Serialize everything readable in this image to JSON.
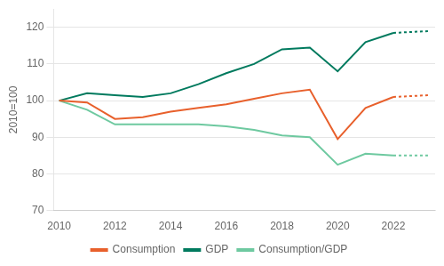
{
  "chart_data": {
    "type": "line",
    "ylabel": "2010=100",
    "series": [
      {
        "name": "Consumption",
        "color": "#E8602C",
        "line_style": "solid",
        "x": [
          2010,
          2011,
          2012,
          2013,
          2014,
          2015,
          2016,
          2017,
          2018,
          2019,
          2020,
          2021,
          2022
        ],
        "values": [
          100,
          99.5,
          95,
          95.5,
          97,
          98,
          99,
          100.5,
          102,
          103,
          89.5,
          98,
          101
        ]
      },
      {
        "name": "GDP",
        "color": "#007A5E",
        "line_style": "solid",
        "x": [
          2010,
          2011,
          2012,
          2013,
          2014,
          2015,
          2016,
          2017,
          2018,
          2019,
          2020,
          2021,
          2022
        ],
        "values": [
          100,
          102,
          101.5,
          101,
          102,
          104.5,
          107.5,
          110,
          114,
          114.5,
          108,
          116,
          118.5
        ]
      },
      {
        "name": "Consumption/GDP",
        "color": "#6EC9A0",
        "line_style": "solid",
        "x": [
          2010,
          2011,
          2012,
          2013,
          2014,
          2015,
          2016,
          2017,
          2018,
          2019,
          2020,
          2021,
          2022
        ],
        "values": [
          100,
          97.5,
          93.5,
          93.5,
          93.5,
          93.5,
          93,
          92,
          90.5,
          90,
          82.5,
          85.5,
          85
        ]
      },
      {
        "color": "#E8602C",
        "line_style": "dotted",
        "x": [
          2022,
          2023.3
        ],
        "values": [
          101,
          101.5
        ]
      },
      {
        "color": "#007A5E",
        "line_style": "dotted",
        "x": [
          2022,
          2023.3
        ],
        "values": [
          118.5,
          119
        ]
      },
      {
        "color": "#6EC9A0",
        "line_style": "dotted",
        "x": [
          2022,
          2023.3
        ],
        "values": [
          85,
          85
        ]
      }
    ],
    "xlim": [
      2009.8,
      2023.5
    ],
    "xticks": [
      2010,
      2012,
      2014,
      2016,
      2018,
      2020,
      2022
    ],
    "ylim": [
      70,
      125
    ],
    "yticks": [
      70,
      80,
      90,
      100,
      110,
      120
    ],
    "grid": "y",
    "legend": "bottom"
  }
}
